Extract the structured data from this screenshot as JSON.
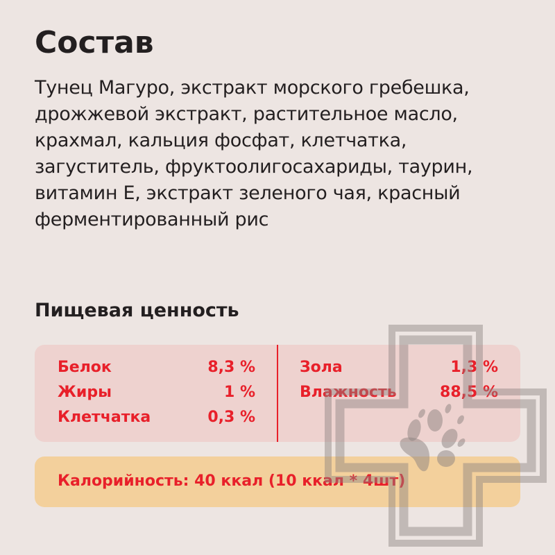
{
  "composition": {
    "title": "Состав",
    "text": "Тунец Магуро, экстракт морского гребешка, дрожжевой экстракт, растительное масло, крахмал, кальция фосфат, клетчатка, загуститель, фруктоолигосахариды, таурин, витамин Е, экстракт зеленого чая, красный ферментированный рис"
  },
  "nutrition": {
    "title": "Пищевая ценность",
    "left": [
      {
        "label": "Белок",
        "value": "8,3 %"
      },
      {
        "label": "Жиры",
        "value": "1 %"
      },
      {
        "label": "Клетчатка",
        "value": "0,3 %"
      }
    ],
    "right": [
      {
        "label": "Зола",
        "value": "1,3 %"
      },
      {
        "label": "Влажность",
        "value": "88,5 %"
      }
    ],
    "calories": "Калорийность: 40 ккал (10 ккал * 4шт)"
  },
  "colors": {
    "accent": "#e8202a",
    "nutrition_box": "#eed2cf",
    "calorie_box": "#f3d09c",
    "background": "#ede5e2"
  },
  "watermark": {
    "icon": "vet-cross-paw-icon"
  }
}
